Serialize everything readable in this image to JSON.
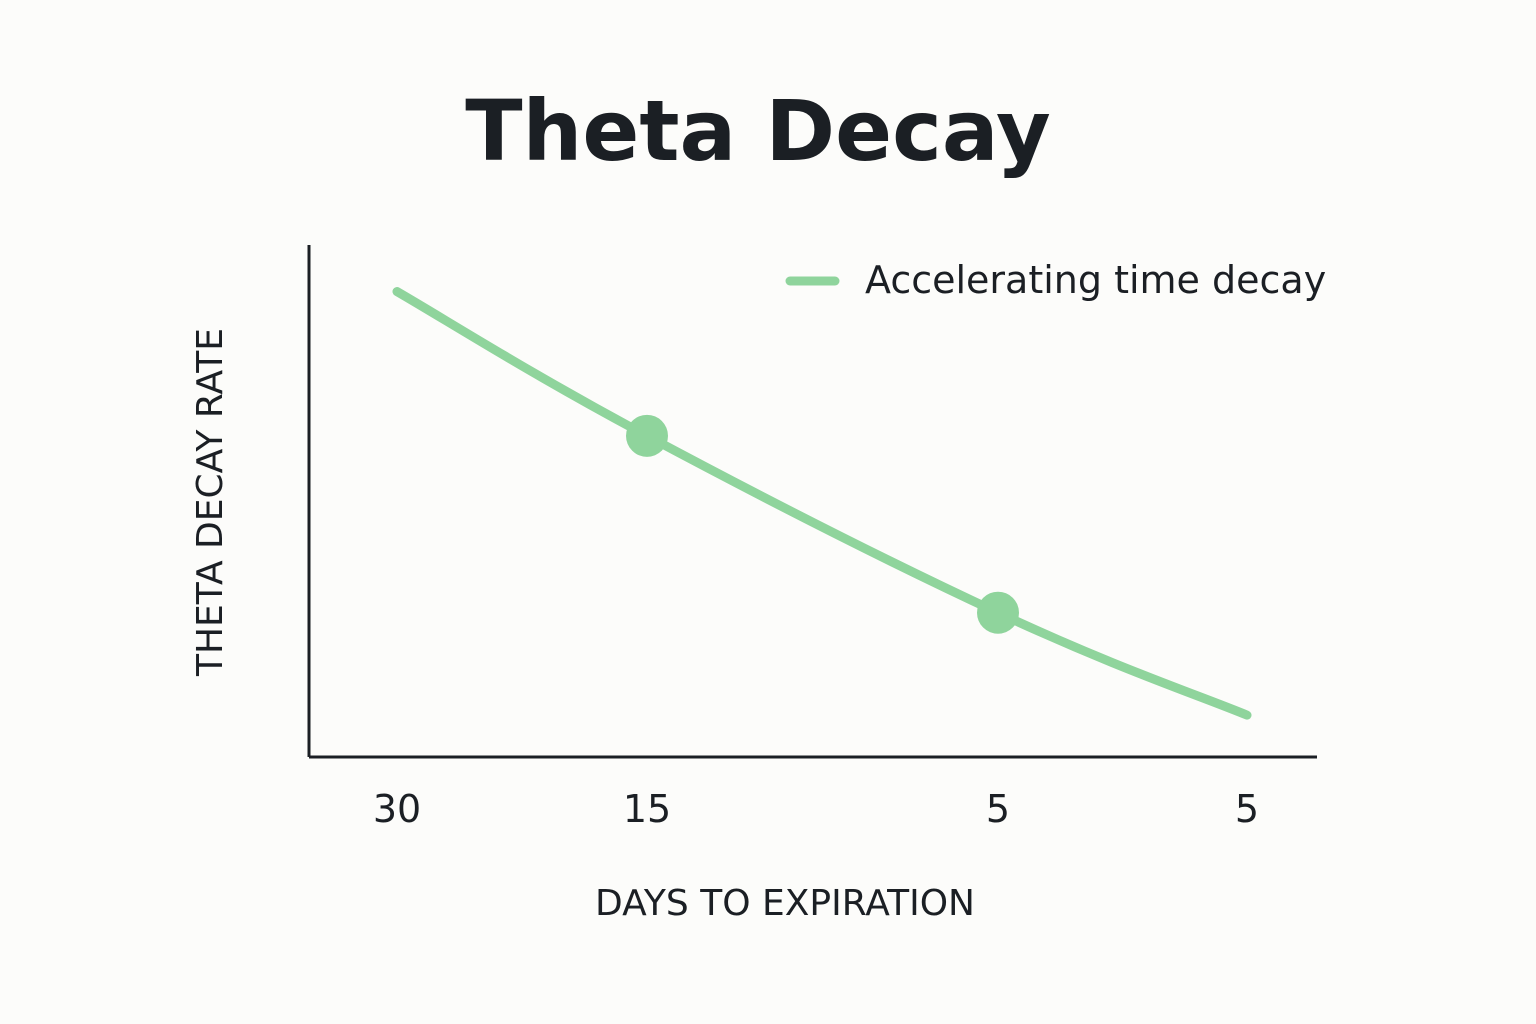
{
  "chart_data": {
    "type": "line",
    "title": "Theta Decay",
    "xlabel": "DAYS TO EXPIRATION",
    "ylabel": "THETA DECAY RATE",
    "categories": [
      "30",
      "15",
      "5",
      "5"
    ],
    "series": [
      {
        "name": "Accelerating time decay",
        "color": "#8fd49c",
        "values": [
          1.0,
          0.69,
          0.31,
          0.09
        ],
        "markers": [
          false,
          true,
          true,
          false
        ]
      }
    ],
    "ylim": [
      0,
      1.1
    ],
    "grid": false,
    "legend": "top-right",
    "x_axis_visible": true,
    "y_axis_visible": true
  }
}
